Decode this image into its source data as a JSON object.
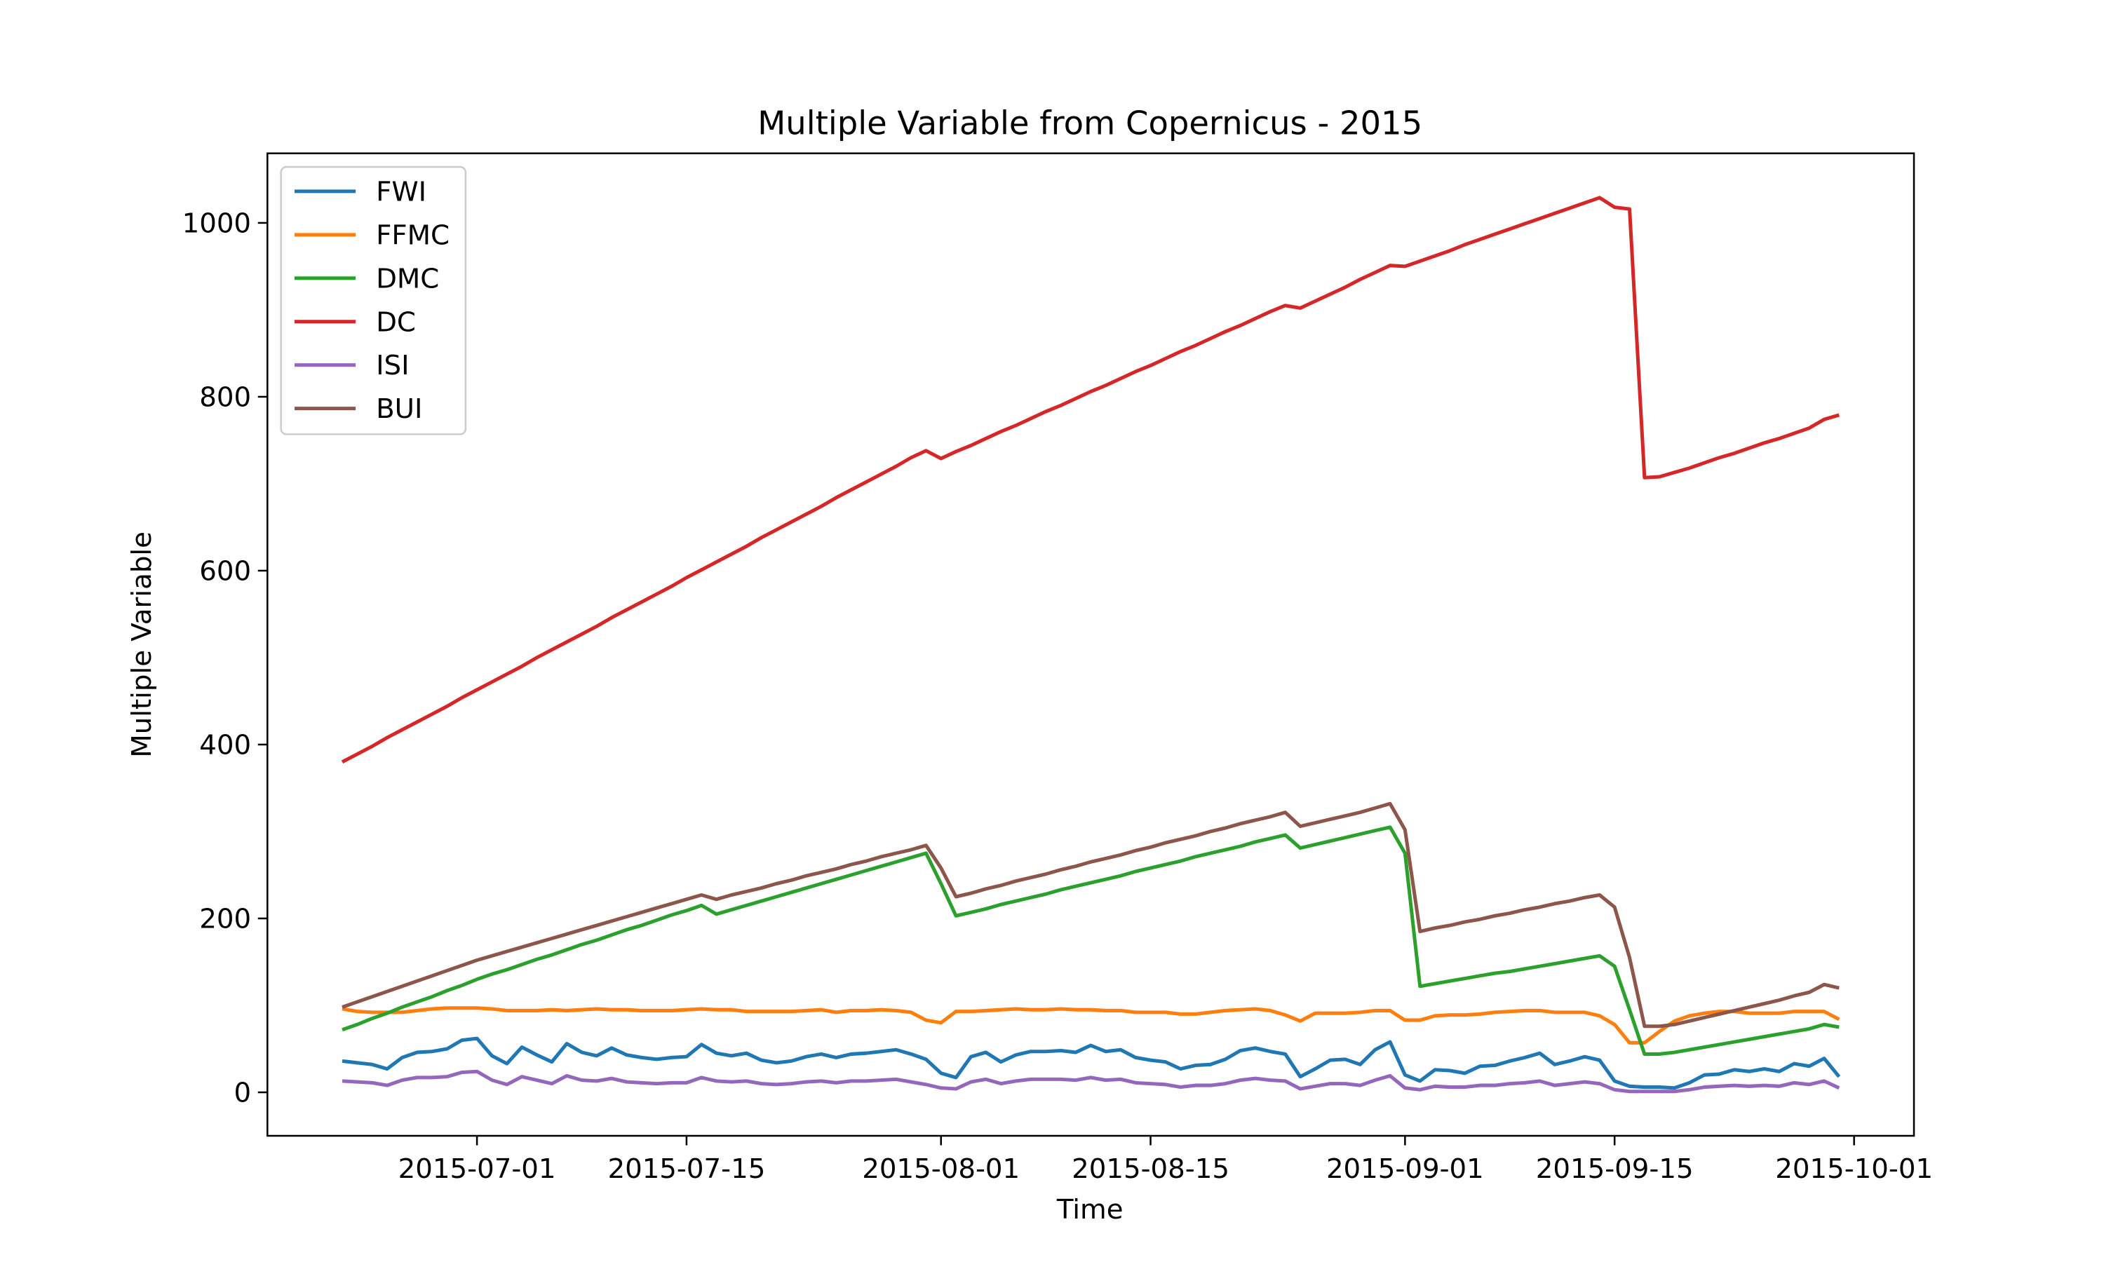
{
  "chart_data": {
    "type": "line",
    "title": "Multiple Variable from Copernicus - 2015",
    "xlabel": "Time",
    "ylabel": "Multiple Variable",
    "x": [
      "2015-06-22",
      "2015-06-23",
      "2015-06-24",
      "2015-06-25",
      "2015-06-26",
      "2015-06-27",
      "2015-06-28",
      "2015-06-29",
      "2015-06-30",
      "2015-07-01",
      "2015-07-02",
      "2015-07-03",
      "2015-07-04",
      "2015-07-05",
      "2015-07-06",
      "2015-07-07",
      "2015-07-08",
      "2015-07-09",
      "2015-07-10",
      "2015-07-11",
      "2015-07-12",
      "2015-07-13",
      "2015-07-14",
      "2015-07-15",
      "2015-07-16",
      "2015-07-17",
      "2015-07-18",
      "2015-07-19",
      "2015-07-20",
      "2015-07-21",
      "2015-07-22",
      "2015-07-23",
      "2015-07-24",
      "2015-07-25",
      "2015-07-26",
      "2015-07-27",
      "2015-07-28",
      "2015-07-29",
      "2015-07-30",
      "2015-07-31",
      "2015-08-01",
      "2015-08-02",
      "2015-08-03",
      "2015-08-04",
      "2015-08-05",
      "2015-08-06",
      "2015-08-07",
      "2015-08-08",
      "2015-08-09",
      "2015-08-10",
      "2015-08-11",
      "2015-08-12",
      "2015-08-13",
      "2015-08-14",
      "2015-08-15",
      "2015-08-16",
      "2015-08-17",
      "2015-08-18",
      "2015-08-19",
      "2015-08-20",
      "2015-08-21",
      "2015-08-22",
      "2015-08-23",
      "2015-08-24",
      "2015-08-25",
      "2015-08-26",
      "2015-08-27",
      "2015-08-28",
      "2015-08-29",
      "2015-08-30",
      "2015-08-31",
      "2015-09-01",
      "2015-09-02",
      "2015-09-03",
      "2015-09-04",
      "2015-09-05",
      "2015-09-06",
      "2015-09-07",
      "2015-09-08",
      "2015-09-09",
      "2015-09-10",
      "2015-09-11",
      "2015-09-12",
      "2015-09-13",
      "2015-09-14",
      "2015-09-15",
      "2015-09-16",
      "2015-09-17",
      "2015-09-18",
      "2015-09-19",
      "2015-09-20",
      "2015-09-21",
      "2015-09-22",
      "2015-09-23",
      "2015-09-24",
      "2015-09-25",
      "2015-09-26",
      "2015-09-27",
      "2015-09-28",
      "2015-09-29",
      "2015-09-30"
    ],
    "series": [
      {
        "name": "FWI",
        "color": "#1f77b4",
        "values": [
          36,
          34,
          32,
          27,
          40,
          46,
          47,
          50,
          60,
          62,
          42,
          33,
          52,
          43,
          35,
          56,
          46,
          42,
          51,
          43,
          40,
          38,
          40,
          41,
          55,
          45,
          42,
          45,
          37,
          34,
          36,
          41,
          44,
          40,
          44,
          45,
          47,
          49,
          44,
          38,
          22,
          17,
          41,
          46,
          35,
          43,
          47,
          47,
          48,
          46,
          54,
          47,
          49,
          40,
          37,
          35,
          27,
          31,
          32,
          38,
          48,
          51,
          47,
          44,
          18,
          27,
          37,
          38,
          32,
          49,
          58,
          20,
          13,
          26,
          25,
          22,
          30,
          31,
          36,
          40,
          45,
          32,
          36,
          41,
          37,
          13,
          7,
          6,
          6,
          5,
          11,
          20,
          21,
          26,
          24,
          27,
          24,
          33,
          30,
          39,
          18
        ]
      },
      {
        "name": "FFMC",
        "color": "#ff7f0e",
        "values": [
          96,
          93,
          92,
          92,
          92,
          94,
          96,
          97,
          97,
          97,
          96,
          94,
          94,
          94,
          95,
          94,
          95,
          96,
          95,
          95,
          94,
          94,
          94,
          95,
          96,
          95,
          95,
          93,
          93,
          93,
          93,
          94,
          95,
          92,
          94,
          94,
          95,
          94,
          92,
          83,
          80,
          93,
          93,
          94,
          95,
          96,
          95,
          95,
          96,
          95,
          95,
          94,
          94,
          92,
          92,
          92,
          90,
          90,
          92,
          94,
          95,
          96,
          94,
          89,
          82,
          91,
          91,
          91,
          92,
          94,
          94,
          83,
          83,
          88,
          89,
          89,
          90,
          92,
          93,
          94,
          94,
          92,
          92,
          92,
          88,
          78,
          57,
          57,
          70,
          82,
          88,
          91,
          93,
          93,
          91,
          91,
          91,
          93,
          93,
          93,
          84
        ]
      },
      {
        "name": "DMC",
        "color": "#2ca02c",
        "values": [
          72,
          78,
          85,
          91,
          98,
          104,
          110,
          117,
          123,
          130,
          136,
          141,
          147,
          153,
          158,
          164,
          170,
          175,
          181,
          187,
          192,
          198,
          204,
          209,
          215,
          205,
          210,
          215,
          220,
          225,
          230,
          235,
          240,
          245,
          250,
          255,
          260,
          265,
          270,
          275,
          240,
          203,
          207,
          211,
          216,
          220,
          224,
          228,
          233,
          237,
          241,
          245,
          249,
          254,
          258,
          262,
          266,
          271,
          275,
          279,
          283,
          288,
          292,
          296,
          281,
          285,
          289,
          293,
          297,
          301,
          305,
          275,
          122,
          125,
          128,
          131,
          134,
          137,
          139,
          142,
          145,
          148,
          151,
          154,
          157,
          145,
          95,
          44,
          44,
          46,
          49,
          52,
          55,
          58,
          61,
          64,
          67,
          70,
          73,
          78,
          75
        ]
      },
      {
        "name": "DC",
        "color": "#d62728",
        "values": [
          380,
          389,
          398,
          408,
          417,
          426,
          435,
          444,
          454,
          463,
          472,
          481,
          490,
          500,
          509,
          518,
          527,
          536,
          546,
          555,
          564,
          573,
          582,
          592,
          601,
          610,
          619,
          628,
          638,
          647,
          656,
          665,
          674,
          684,
          693,
          702,
          711,
          720,
          730,
          738,
          729,
          737,
          744,
          752,
          760,
          767,
          775,
          783,
          790,
          798,
          806,
          813,
          821,
          829,
          836,
          844,
          852,
          859,
          867,
          875,
          882,
          890,
          898,
          905,
          902,
          910,
          918,
          926,
          935,
          943,
          951,
          950,
          956,
          962,
          968,
          975,
          981,
          987,
          993,
          999,
          1005,
          1011,
          1017,
          1023,
          1029,
          1018,
          1016,
          707,
          708,
          713,
          718,
          724,
          730,
          735,
          741,
          747,
          752,
          758,
          764,
          774,
          779
        ]
      },
      {
        "name": "ISI",
        "color": "#9467bd",
        "values": [
          13,
          12,
          11,
          8,
          14,
          17,
          17,
          18,
          23,
          24,
          14,
          9,
          18,
          14,
          10,
          19,
          14,
          13,
          16,
          12,
          11,
          10,
          11,
          11,
          17,
          13,
          12,
          13,
          10,
          9,
          10,
          12,
          13,
          11,
          13,
          13,
          14,
          15,
          12,
          9,
          5,
          4,
          12,
          15,
          10,
          13,
          15,
          15,
          15,
          14,
          17,
          14,
          15,
          11,
          10,
          9,
          6,
          8,
          8,
          10,
          14,
          16,
          14,
          13,
          4,
          7,
          10,
          10,
          8,
          14,
          19,
          5,
          3,
          7,
          6,
          6,
          8,
          8,
          10,
          11,
          13,
          8,
          10,
          12,
          10,
          3,
          1,
          1,
          1,
          1,
          3,
          6,
          7,
          8,
          7,
          8,
          7,
          11,
          9,
          13,
          5
        ]
      },
      {
        "name": "BUI",
        "color": "#8c564b",
        "values": [
          98,
          104,
          110,
          116,
          122,
          128,
          134,
          140,
          146,
          152,
          157,
          162,
          167,
          172,
          177,
          182,
          187,
          192,
          197,
          202,
          207,
          212,
          217,
          222,
          227,
          222,
          227,
          231,
          235,
          240,
          244,
          249,
          253,
          257,
          262,
          266,
          271,
          275,
          279,
          284,
          258,
          225,
          229,
          234,
          238,
          243,
          247,
          251,
          256,
          260,
          265,
          269,
          273,
          278,
          282,
          287,
          291,
          295,
          300,
          304,
          309,
          313,
          317,
          322,
          306,
          310,
          314,
          318,
          322,
          327,
          332,
          302,
          185,
          189,
          192,
          196,
          199,
          203,
          206,
          210,
          213,
          217,
          220,
          224,
          227,
          213,
          155,
          76,
          76,
          78,
          82,
          86,
          90,
          94,
          98,
          102,
          106,
          111,
          115,
          124,
          120
        ]
      }
    ],
    "xlim": [
      "2015-06-17",
      "2015-10-05"
    ],
    "xticks": [
      "2015-07-01",
      "2015-07-15",
      "2015-08-01",
      "2015-08-15",
      "2015-09-01",
      "2015-09-15",
      "2015-10-01"
    ],
    "ylim": [
      -50,
      1080
    ],
    "yticks": [
      0,
      200,
      400,
      600,
      800,
      1000
    ],
    "legend": "upper left",
    "grid": false
  }
}
